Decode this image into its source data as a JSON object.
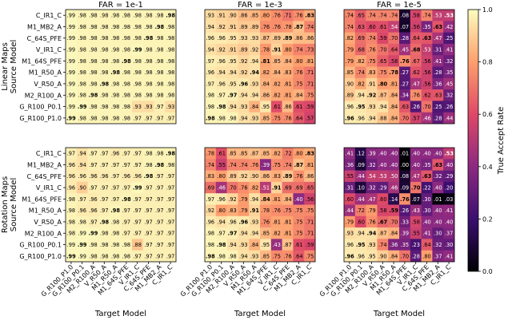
{
  "colormap_stops": [
    "#000004",
    "#3b0f70",
    "#8c2981",
    "#de4968",
    "#fe9f6d",
    "#fcfdbf"
  ],
  "chart_data": {
    "type": "heatmap",
    "row_labels": [
      "C_IR1_C",
      "M1_MB2_A",
      "C_64S_PFE",
      "V_IR1_C",
      "M1_64S_PFE",
      "M1_R50_A",
      "V_R50_A",
      "M2_R100_A",
      "G_R100_P0.1",
      "G_R100_P1.0"
    ],
    "col_labels": [
      "G_R100_P1.0",
      "G_R100_P0.1",
      "M2_R100_A",
      "V_R50_A",
      "M1_R50_A",
      "M1_64S_PFE",
      "V_IR1_C",
      "C_64S_PFE",
      "M1_MB2_A",
      "C_IR1_C"
    ],
    "xlabel": "Target Model",
    "group_ylabels": [
      "Linear Maps\nSource Model",
      "Rotation Maps\nSource Model"
    ],
    "colorbar": {
      "label": "True Accept Rate",
      "ticks": [
        "0.0",
        "0.2",
        "0.4",
        "0.6",
        "0.8",
        "1.0"
      ],
      "range": [
        0,
        1
      ]
    },
    "panel_titles": [
      "FAR = 1e-1",
      "FAR = 1e-3",
      "FAR = 1e-5"
    ],
    "panels": [
      {
        "group": "Linear Maps",
        "far": "1e-1",
        "bold_diagonal": true,
        "values": [
          [
            0.99,
            0.98,
            0.98,
            0.98,
            0.98,
            0.98,
            0.98,
            0.98,
            0.98,
            0.98
          ],
          [
            0.99,
            0.98,
            0.98,
            0.98,
            0.98,
            0.98,
            0.98,
            0.98,
            0.98,
            0.98
          ],
          [
            0.99,
            0.98,
            0.98,
            0.98,
            0.98,
            0.98,
            0.98,
            0.98,
            0.98,
            0.98
          ],
          [
            0.99,
            0.98,
            0.98,
            0.98,
            0.98,
            0.98,
            0.99,
            0.98,
            0.98,
            0.98
          ],
          [
            0.99,
            0.98,
            0.98,
            0.98,
            0.98,
            0.98,
            0.98,
            0.98,
            0.98,
            0.98
          ],
          [
            0.99,
            0.98,
            0.98,
            0.98,
            0.98,
            0.98,
            0.98,
            0.98,
            0.98,
            0.98
          ],
          [
            0.99,
            0.98,
            0.98,
            0.98,
            0.98,
            0.98,
            0.98,
            0.98,
            0.98,
            0.98
          ],
          [
            0.99,
            0.98,
            0.98,
            0.98,
            0.98,
            0.98,
            0.98,
            0.98,
            0.98,
            0.98
          ],
          [
            0.99,
            0.99,
            0.98,
            0.98,
            0.98,
            0.98,
            0.93,
            0.93,
            0.97,
            0.93
          ],
          [
            0.99,
            0.98,
            0.98,
            0.98,
            0.98,
            0.98,
            0.97,
            0.97,
            0.97,
            0.97
          ]
        ]
      },
      {
        "group": "Linear Maps",
        "far": "1e-3",
        "bold_diagonal": true,
        "values": [
          [
            0.93,
            0.91,
            0.9,
            0.86,
            0.85,
            0.8,
            0.76,
            0.71,
            0.76,
            0.83
          ],
          [
            0.94,
            0.92,
            0.91,
            0.89,
            0.89,
            0.76,
            0.76,
            0.78,
            0.87,
            0.74
          ],
          [
            0.96,
            0.96,
            0.95,
            0.93,
            0.93,
            0.87,
            0.89,
            0.89,
            0.86,
            0.86
          ],
          [
            0.94,
            0.92,
            0.91,
            0.89,
            0.92,
            0.78,
            0.91,
            0.8,
            0.74,
            0.73
          ],
          [
            0.97,
            0.96,
            0.95,
            0.92,
            0.94,
            0.81,
            0.85,
            0.84,
            0.8,
            0.81
          ],
          [
            0.96,
            0.94,
            0.94,
            0.92,
            0.94,
            0.82,
            0.84,
            0.83,
            0.76,
            0.71
          ],
          [
            0.97,
            0.96,
            0.95,
            0.96,
            0.93,
            0.84,
            0.82,
            0.81,
            0.75,
            0.71
          ],
          [
            0.98,
            0.97,
            0.97,
            0.94,
            0.94,
            0.86,
            0.82,
            0.81,
            0.84,
            0.75
          ],
          [
            0.98,
            0.98,
            0.94,
            0.93,
            0.84,
            0.95,
            0.61,
            0.86,
            0.61,
            0.59
          ],
          [
            0.98,
            0.98,
            0.98,
            0.94,
            0.93,
            0.85,
            0.75,
            0.76,
            0.64,
            0.57
          ]
        ]
      },
      {
        "group": "Linear Maps",
        "far": "1e-5",
        "bold_diagonal": true,
        "values": [
          [
            0.74,
            0.65,
            0.74,
            0.74,
            0.74,
            0.08,
            0.58,
            0.74,
            0.53,
            0.53
          ],
          [
            0.74,
            0.63,
            0.6,
            0.61,
            0.54,
            0.07,
            0.56,
            0.35,
            0.63,
            0.42
          ],
          [
            0.82,
            0.69,
            0.74,
            0.59,
            0.7,
            0.28,
            0.64,
            0.63,
            0.47,
            0.25
          ],
          [
            0.79,
            0.68,
            0.76,
            0.7,
            0.64,
            0.45,
            0.68,
            0.53,
            0.31,
            0.41
          ],
          [
            0.79,
            0.82,
            0.75,
            0.65,
            0.58,
            0.76,
            0.67,
            0.56,
            0.41,
            0.32
          ],
          [
            0.85,
            0.74,
            0.83,
            0.75,
            0.78,
            0.27,
            0.62,
            0.56,
            0.28,
            0.35
          ],
          [
            0.9,
            0.82,
            0.91,
            0.8,
            0.81,
            0.27,
            0.47,
            0.56,
            0.36,
            0.45
          ],
          [
            0.89,
            0.94,
            0.92,
            0.87,
            0.84,
            0.34,
            0.76,
            0.62,
            0.63,
            0.32
          ],
          [
            0.96,
            0.95,
            0.93,
            0.94,
            0.84,
            0.63,
            0.26,
            0.7,
            0.25,
            0.26
          ],
          [
            0.96,
            0.96,
            0.94,
            0.88,
            0.84,
            0.7,
            0.57,
            0.46,
            0.28,
            0.44
          ]
        ]
      },
      {
        "group": "Rotation Maps",
        "far": "1e-1",
        "bold_diagonal": true,
        "values": [
          [
            0.97,
            0.94,
            0.97,
            0.97,
            0.96,
            0.97,
            0.97,
            0.98,
            0.98,
            0.98
          ],
          [
            0.96,
            0.94,
            0.97,
            0.97,
            0.97,
            0.97,
            0.97,
            0.98,
            0.98,
            0.98
          ],
          [
            0.96,
            0.96,
            0.96,
            0.96,
            0.97,
            0.96,
            0.96,
            0.98,
            0.97,
            0.97
          ],
          [
            0.96,
            0.9,
            0.97,
            0.97,
            0.97,
            0.97,
            0.99,
            0.97,
            0.97,
            0.97
          ],
          [
            0.98,
            0.97,
            0.96,
            0.97,
            0.97,
            0.98,
            0.97,
            0.97,
            0.97,
            0.97
          ],
          [
            0.98,
            0.96,
            0.96,
            0.97,
            0.98,
            0.97,
            0.97,
            0.97,
            0.97,
            0.97
          ],
          [
            0.98,
            0.98,
            0.97,
            0.98,
            0.98,
            0.97,
            0.97,
            0.97,
            0.97,
            0.97
          ],
          [
            0.98,
            0.99,
            0.99,
            0.98,
            0.98,
            0.97,
            0.97,
            0.97,
            0.97,
            0.97
          ],
          [
            0.99,
            0.99,
            0.98,
            0.98,
            0.98,
            0.98,
            0.88,
            0.97,
            0.97,
            0.97
          ],
          [
            0.99,
            0.99,
            0.98,
            0.98,
            0.98,
            0.98,
            0.97,
            0.97,
            0.97,
            0.97
          ]
        ]
      },
      {
        "group": "Rotation Maps",
        "far": "1e-3",
        "bold_diagonal": true,
        "values": [
          [
            0.78,
            0.61,
            0.85,
            0.85,
            0.87,
            0.85,
            0.82,
            0.72,
            0.8,
            0.83
          ],
          [
            0.74,
            0.55,
            0.74,
            0.74,
            0.76,
            0.39,
            0.75,
            0.74,
            0.87,
            0.81
          ],
          [
            0.83,
            0.8,
            0.89,
            0.92,
            0.9,
            0.86,
            0.83,
            0.89,
            0.76,
            0.86
          ],
          [
            0.69,
            0.46,
            0.7,
            0.76,
            0.82,
            0.51,
            0.91,
            0.69,
            0.69,
            0.65
          ],
          [
            0.97,
            0.96,
            0.92,
            0.79,
            0.94,
            0.84,
            0.81,
            0.84,
            0.4,
            0.56
          ],
          [
            0.92,
            0.8,
            0.83,
            0.79,
            0.91,
            0.78,
            0.76,
            0.75,
            0.75,
            0.75
          ],
          [
            0.96,
            0.94,
            0.96,
            0.96,
            0.93,
            0.76,
            0.81,
            0.81,
            0.75,
            0.71
          ],
          [
            0.98,
            0.97,
            0.97,
            0.94,
            0.94,
            0.85,
            0.82,
            0.81,
            0.75,
            0.71
          ],
          [
            0.98,
            0.98,
            0.94,
            0.93,
            0.84,
            0.95,
            0.43,
            0.87,
            0.61,
            0.59
          ],
          [
            0.98,
            0.98,
            0.98,
            0.94,
            0.93,
            0.85,
            0.75,
            0.76,
            0.64,
            0.75
          ]
        ]
      },
      {
        "group": "Rotation Maps",
        "far": "1e-5",
        "bold_diagonal": true,
        "values": [
          [
            0.41,
            0.12,
            0.39,
            0.4,
            0.4,
            0.01,
            0.4,
            0.4,
            0.4,
            0.53
          ],
          [
            0.36,
            0.09,
            0.32,
            0.4,
            0.4,
            0.0,
            0.4,
            0.35,
            0.63,
            0.4
          ],
          [
            0.55,
            0.44,
            0.54,
            0.53,
            0.5,
            0.08,
            0.47,
            0.63,
            0.32,
            0.29
          ],
          [
            0.31,
            0.1,
            0.32,
            0.29,
            0.46,
            0.09,
            0.7,
            0.22,
            0.4,
            0.2
          ],
          [
            0.6,
            0.44,
            0.47,
            0.6,
            0.14,
            0.76,
            0.07,
            0.3,
            0.01,
            0.03
          ],
          [
            0.44,
            0.72,
            0.79,
            0.58,
            0.59,
            0.26,
            0.43,
            0.3,
            0.4,
            0.41
          ],
          [
            0.79,
            0.6,
            0.76,
            0.67,
            0.7,
            0.33,
            0.58,
            0.4,
            0.4,
            0.4
          ],
          [
            0.93,
            0.94,
            0.94,
            0.87,
            0.84,
            0.39,
            0.55,
            0.41,
            0.3,
            0.37
          ],
          [
            0.96,
            0.95,
            0.93,
            0.74,
            0.36,
            0.35,
            0.23,
            0.64,
            0.32,
            0.3
          ],
          [
            0.96,
            0.96,
            0.95,
            0.9,
            0.84,
            0.7,
            0.28,
            0.8,
            0.37,
            0.41
          ]
        ]
      }
    ]
  }
}
